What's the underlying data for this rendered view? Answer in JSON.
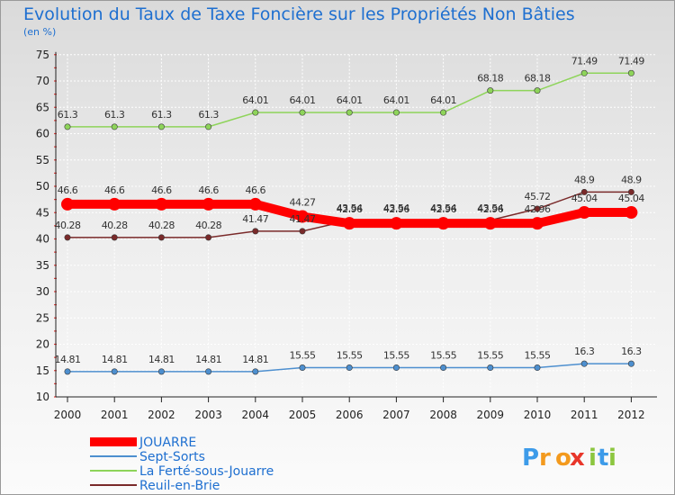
{
  "chart_data": {
    "type": "line",
    "title": "Evolution du Taux de Taxe Foncière sur les Propriétés Non Bâties",
    "subtitle": "(en %)",
    "xlabel": "",
    "ylabel": "",
    "ylim": [
      10,
      75
    ],
    "yticks": [
      10,
      15,
      20,
      25,
      30,
      35,
      40,
      45,
      50,
      55,
      60,
      65,
      70,
      75
    ],
    "grid": true,
    "legend_position": "bottom-left",
    "categories": [
      "2000",
      "2001",
      "2002",
      "2003",
      "2004",
      "2005",
      "2006",
      "2007",
      "2008",
      "2009",
      "2010",
      "2011",
      "2012"
    ],
    "series": [
      {
        "name": "JOUARRE",
        "color": "#ff0000",
        "values": [
          46.6,
          46.6,
          46.6,
          46.6,
          46.6,
          44.27,
          42.96,
          42.96,
          42.96,
          42.96,
          42.96,
          45.04,
          45.04
        ],
        "labels": [
          "46.6",
          "46.6",
          "46.6",
          "46.6",
          "46.6",
          "44.27",
          "42.96",
          "42.96",
          "42.96",
          "42.96",
          "42.96",
          "45.04",
          "45.04"
        ]
      },
      {
        "name": "Sept-Sorts",
        "color": "#4d8fcf",
        "values": [
          14.81,
          14.81,
          14.81,
          14.81,
          14.81,
          15.55,
          15.55,
          15.55,
          15.55,
          15.55,
          15.55,
          16.3,
          16.3
        ],
        "labels": [
          "14.81",
          "14.81",
          "14.81",
          "14.81",
          "14.81",
          "15.55",
          "15.55",
          "15.55",
          "15.55",
          "15.55",
          "15.55",
          "16.3",
          "16.3"
        ]
      },
      {
        "name": "La Ferté-sous-Jouarre",
        "color": "#8ed45a",
        "values": [
          61.3,
          61.3,
          61.3,
          61.3,
          64.01,
          64.01,
          64.01,
          64.01,
          64.01,
          68.18,
          68.18,
          71.49,
          71.49
        ],
        "labels": [
          "61.3",
          "61.3",
          "61.3",
          "61.3",
          "64.01",
          "64.01",
          "64.01",
          "64.01",
          "64.01",
          "68.18",
          "68.18",
          "71.49",
          "71.49"
        ]
      },
      {
        "name": "Reuil-en-Brie",
        "color": "#7a2a2a",
        "values": [
          40.28,
          40.28,
          40.28,
          40.28,
          41.47,
          41.47,
          43.54,
          43.54,
          43.54,
          43.54,
          45.72,
          48.9,
          48.9
        ],
        "labels": [
          "40.28",
          "40.28",
          "40.28",
          "40.28",
          "41.47",
          "41.47",
          "43.54",
          "43.54",
          "43.54",
          "43.54",
          "45.72",
          "48.9",
          "48.9"
        ]
      }
    ]
  },
  "logo": {
    "letters": [
      "P",
      "r",
      "o",
      "x",
      "i",
      "t",
      "i"
    ],
    "colors": [
      "#3d9be9",
      "#f39a1e",
      "#f39a1e",
      "#e8362a",
      "#8cc63f",
      "#3d9be9",
      "#8cc63f"
    ]
  }
}
